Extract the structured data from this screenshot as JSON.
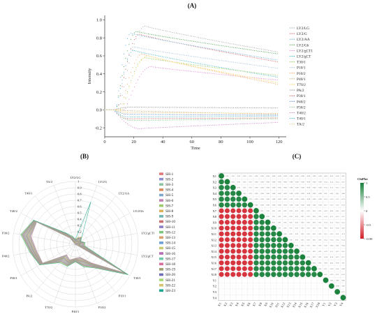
{
  "panels": {
    "a": "(A)",
    "b": "(B)",
    "c": "(C)"
  },
  "chart_data": [
    {
      "type": "line",
      "panel": "(A)",
      "xlabel": "Time",
      "ylabel": "Intensity",
      "xlim": [
        0,
        125
      ],
      "ylim": [
        -0.3,
        1.05
      ],
      "xticks": [
        0,
        20,
        40,
        60,
        80,
        100,
        120
      ],
      "yticks": [
        -0.2,
        0.0,
        0.2,
        0.4,
        0.6,
        0.8,
        1.0
      ],
      "grid": false,
      "legend_position": "right",
      "series": [
        {
          "name": "LY2/LG",
          "color": "#9e9e9e",
          "onset": 10,
          "peak_t": 28,
          "peak": 0.93,
          "end": 0.64
        },
        {
          "name": "LY2/G",
          "color": "#d94b4b",
          "onset": 9,
          "peak_t": 24,
          "peak": 0.84,
          "end": 0.53
        },
        {
          "name": "LY2/AA",
          "color": "#5fa8e0",
          "onset": 8,
          "peak_t": 18,
          "peak": 0.85,
          "end": 0.55
        },
        {
          "name": "LY2/Gh",
          "color": "#3b9b3b",
          "onset": 8,
          "peak_t": 22,
          "peak": 0.87,
          "end": 0.62
        },
        {
          "name": "LY2/gCT1",
          "color": "#e07ad4",
          "onset": 14,
          "peak_t": 32,
          "peak": 0.48,
          "end": 0.33
        },
        {
          "name": "LY2/gCT",
          "color": "#2bb5c4",
          "onset": 8,
          "peak_t": 20,
          "peak": 0.66,
          "end": 0.36
        },
        {
          "name": "T30/1",
          "color": "#8bc34a",
          "onset": 12,
          "peak_t": 28,
          "peak": 0.58,
          "end": 0.38
        },
        {
          "name": "P10/1",
          "color": "#9db7d9",
          "onset": 9,
          "peak_t": 20,
          "peak": 0.7,
          "end": 0.46
        },
        {
          "name": "P10/2",
          "color": "#f0a050",
          "onset": 11,
          "peak_t": 26,
          "peak": 0.62,
          "end": 0.28
        },
        {
          "name": "P40/1",
          "color": "#b9a76e",
          "onset": 6,
          "peak_t": 16,
          "peak": -0.01,
          "end": -0.05
        },
        {
          "name": "T70/2",
          "color": "#ffd54f",
          "onset": 12,
          "peak_t": 30,
          "peak": 0.6,
          "end": 0.3
        },
        {
          "name": "PA/2",
          "color": "#7f7f7f",
          "onset": 6,
          "peak_t": 18,
          "peak": 0.03,
          "end": 0.02
        },
        {
          "name": "P30/1",
          "color": "#c44e3b",
          "onset": 6,
          "peak_t": 16,
          "peak": -0.1,
          "end": -0.09
        },
        {
          "name": "P40/2",
          "color": "#4c7cc8",
          "onset": 6,
          "peak_t": 16,
          "peak": -0.05,
          "end": -0.06
        },
        {
          "name": "P30/2",
          "color": "#7ec27e",
          "onset": 6,
          "peak_t": 18,
          "peak": -0.12,
          "end": -0.1
        },
        {
          "name": "T40/2",
          "color": "#c77ac4",
          "onset": 6,
          "peak_t": 24,
          "peak": -0.21,
          "end": -0.14
        },
        {
          "name": "T40/1",
          "color": "#39b3c9",
          "onset": 6,
          "peak_t": 16,
          "peak": -0.08,
          "end": -0.07
        },
        {
          "name": "TA/2",
          "color": "#f2c26b",
          "onset": 6,
          "peak_t": 16,
          "peak": -0.03,
          "end": -0.04
        }
      ]
    },
    {
      "type": "radar",
      "panel": "(B)",
      "axes": [
        "LY2/LG",
        "LY2/G",
        "LY2/AA",
        "LY2/Gh",
        "LY2/gCTl",
        "LY2/gCT",
        "T30/1",
        "P10/1",
        "P10/2",
        "P40/1",
        "T70/2",
        "PA/2",
        "P30/1",
        "P40/2",
        "P30/2",
        "T40/2",
        "T40/1",
        "TA/2"
      ],
      "rlim": [
        0,
        1
      ],
      "rticks": [
        "0.1",
        "0.2",
        "0.3",
        "0.4",
        "0.5",
        "0.6",
        "0.7",
        "0.8",
        "0.9",
        "1"
      ],
      "legend_position": "right",
      "series_names": [
        "SH-1",
        "SH-2",
        "SH-3",
        "SH-4",
        "SH-5",
        "SH-6",
        "SH-7",
        "SH-8",
        "SH-9",
        "SH-10",
        "SH-11",
        "SH-12",
        "SH-13",
        "SH-14",
        "SH-15",
        "SH-16",
        "SH-17",
        "SH-18",
        "SH-19",
        "SH-20",
        "SH-21",
        "SH-22",
        "SH-23"
      ],
      "series_colors": [
        "#e07a7a",
        "#8f8fd6",
        "#8bc3a3",
        "#d98c5f",
        "#7fa7c9",
        "#c47fb5",
        "#9cc96b",
        "#e0b15c",
        "#6fb5b5",
        "#c96f6f",
        "#8f7fc4",
        "#7fc47f",
        "#d9a06f",
        "#6f9fd9",
        "#c9c96f",
        "#b56fb5",
        "#6fc9a6",
        "#d96f9f",
        "#9f9f6f",
        "#6f6fb5",
        "#a6d96f",
        "#d9c36f",
        "#1fa88f"
      ],
      "base_values": [
        0.05,
        0.06,
        0.08,
        0.07,
        0.1,
        0.07,
        0.94,
        0.44,
        0.3,
        0.25,
        0.32,
        0.3,
        0.63,
        0.68,
        0.8,
        0.74,
        0.18,
        0.05
      ],
      "highlight_axis": "LY2/G",
      "highlight_value": 0.72
    },
    {
      "type": "heatmap",
      "panel": "(C)",
      "rows": [
        "X1",
        "X2",
        "X3",
        "X4",
        "X5",
        "X6",
        "X7",
        "X8",
        "X9",
        "X10",
        "X11",
        "X12",
        "X13",
        "X14",
        "X15",
        "X16",
        "X17",
        "X18",
        "Y1",
        "Y2",
        "Y3",
        "Y4"
      ],
      "legend_title": "ChiPlot",
      "legend_ticks": [
        "1",
        "0.5",
        "0",
        "-0.5",
        "-0.99"
      ],
      "legend_position": "right",
      "correlation_groups": {
        "x_block_a": [
          "X1",
          "X2",
          "X3",
          "X4",
          "X5",
          "X6"
        ],
        "x_block_b": [
          "X7",
          "X8",
          "X9",
          "X10",
          "X11",
          "X12",
          "X13",
          "X14",
          "X15",
          "X16",
          "X17",
          "X18"
        ],
        "cross_value": -0.9,
        "within_value": 0.95
      }
    }
  ]
}
